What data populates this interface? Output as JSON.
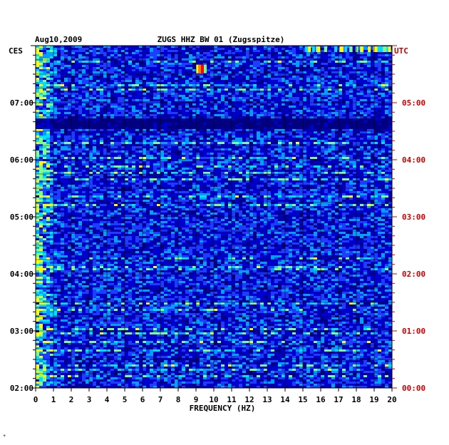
{
  "chart_data": {
    "type": "heatmap",
    "date": "Aug10,2009",
    "title": "ZUGS HHZ BW 01 (Zugsspitze)",
    "left_tz": "CES",
    "right_tz": "UTC",
    "xlabel": "FREQUENCY (HZ)",
    "x_ticks": [
      "0",
      "1",
      "2",
      "3",
      "4",
      "5",
      "6",
      "7",
      "8",
      "9",
      "10",
      "11",
      "12",
      "13",
      "14",
      "15",
      "16",
      "17",
      "18",
      "19",
      "20"
    ],
    "xlim": [
      0,
      20
    ],
    "y_ticks_left": [
      "02:00",
      "03:00",
      "04:00",
      "05:00",
      "06:00",
      "07:00"
    ],
    "y_ticks_right": [
      "00:00",
      "01:00",
      "02:00",
      "03:00",
      "04:00",
      "05:00"
    ],
    "ylim_utc_hours": [
      0,
      6
    ],
    "colormap": [
      "#000080",
      "#0000cd",
      "#1e3cff",
      "#00a0ff",
      "#00e0ff",
      "#80ff80",
      "#ffff00",
      "#ff8000",
      "#ff0000"
    ],
    "events": [
      {
        "label": "high-energy burst",
        "freq_hz": [
          9.0,
          9.8
        ],
        "utc": "05:40"
      },
      {
        "label": "dark gap",
        "utc": "04:40"
      }
    ]
  },
  "footer_mark": "*"
}
